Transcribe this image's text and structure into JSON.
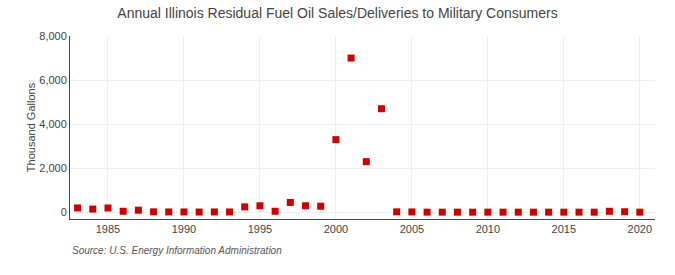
{
  "chart_data": {
    "type": "scatter",
    "title": "Annual Illinois Residual Fuel Oil Sales/Deliveries to Military Consumers",
    "ylabel": "Thousand Gallons",
    "annotations": [
      "Source: U.S. Energy Information Administration"
    ],
    "x": [
      1983,
      1984,
      1985,
      1986,
      1987,
      1988,
      1989,
      1990,
      1991,
      1992,
      1993,
      1994,
      1995,
      1996,
      1997,
      1998,
      1999,
      2000,
      2001,
      2002,
      2003,
      2004,
      2005,
      2006,
      2007,
      2008,
      2009,
      2010,
      2011,
      2012,
      2013,
      2014,
      2015,
      2016,
      2017,
      2018,
      2019,
      2020
    ],
    "values": [
      200,
      150,
      200,
      50,
      100,
      25,
      20,
      20,
      15,
      20,
      20,
      250,
      300,
      50,
      450,
      300,
      280,
      3300,
      7000,
      2300,
      4700,
      25,
      20,
      10,
      10,
      10,
      10,
      10,
      10,
      10,
      10,
      10,
      10,
      10,
      10,
      50,
      30,
      10
    ],
    "color": "#cc0000",
    "marker": "square",
    "xlim": [
      1982.5,
      2021
    ],
    "ylim": [
      -300,
      8000
    ],
    "xticks": [
      1985,
      1990,
      1995,
      2000,
      2005,
      2010,
      2015,
      2020
    ],
    "yticks": [
      0,
      {
        "value": 2000,
        "label": "2,000"
      },
      {
        "value": 4000,
        "label": "4,000"
      },
      {
        "value": 6000,
        "label": "6,000"
      },
      {
        "value": 8000,
        "label": "8,000"
      }
    ],
    "grid": true
  }
}
